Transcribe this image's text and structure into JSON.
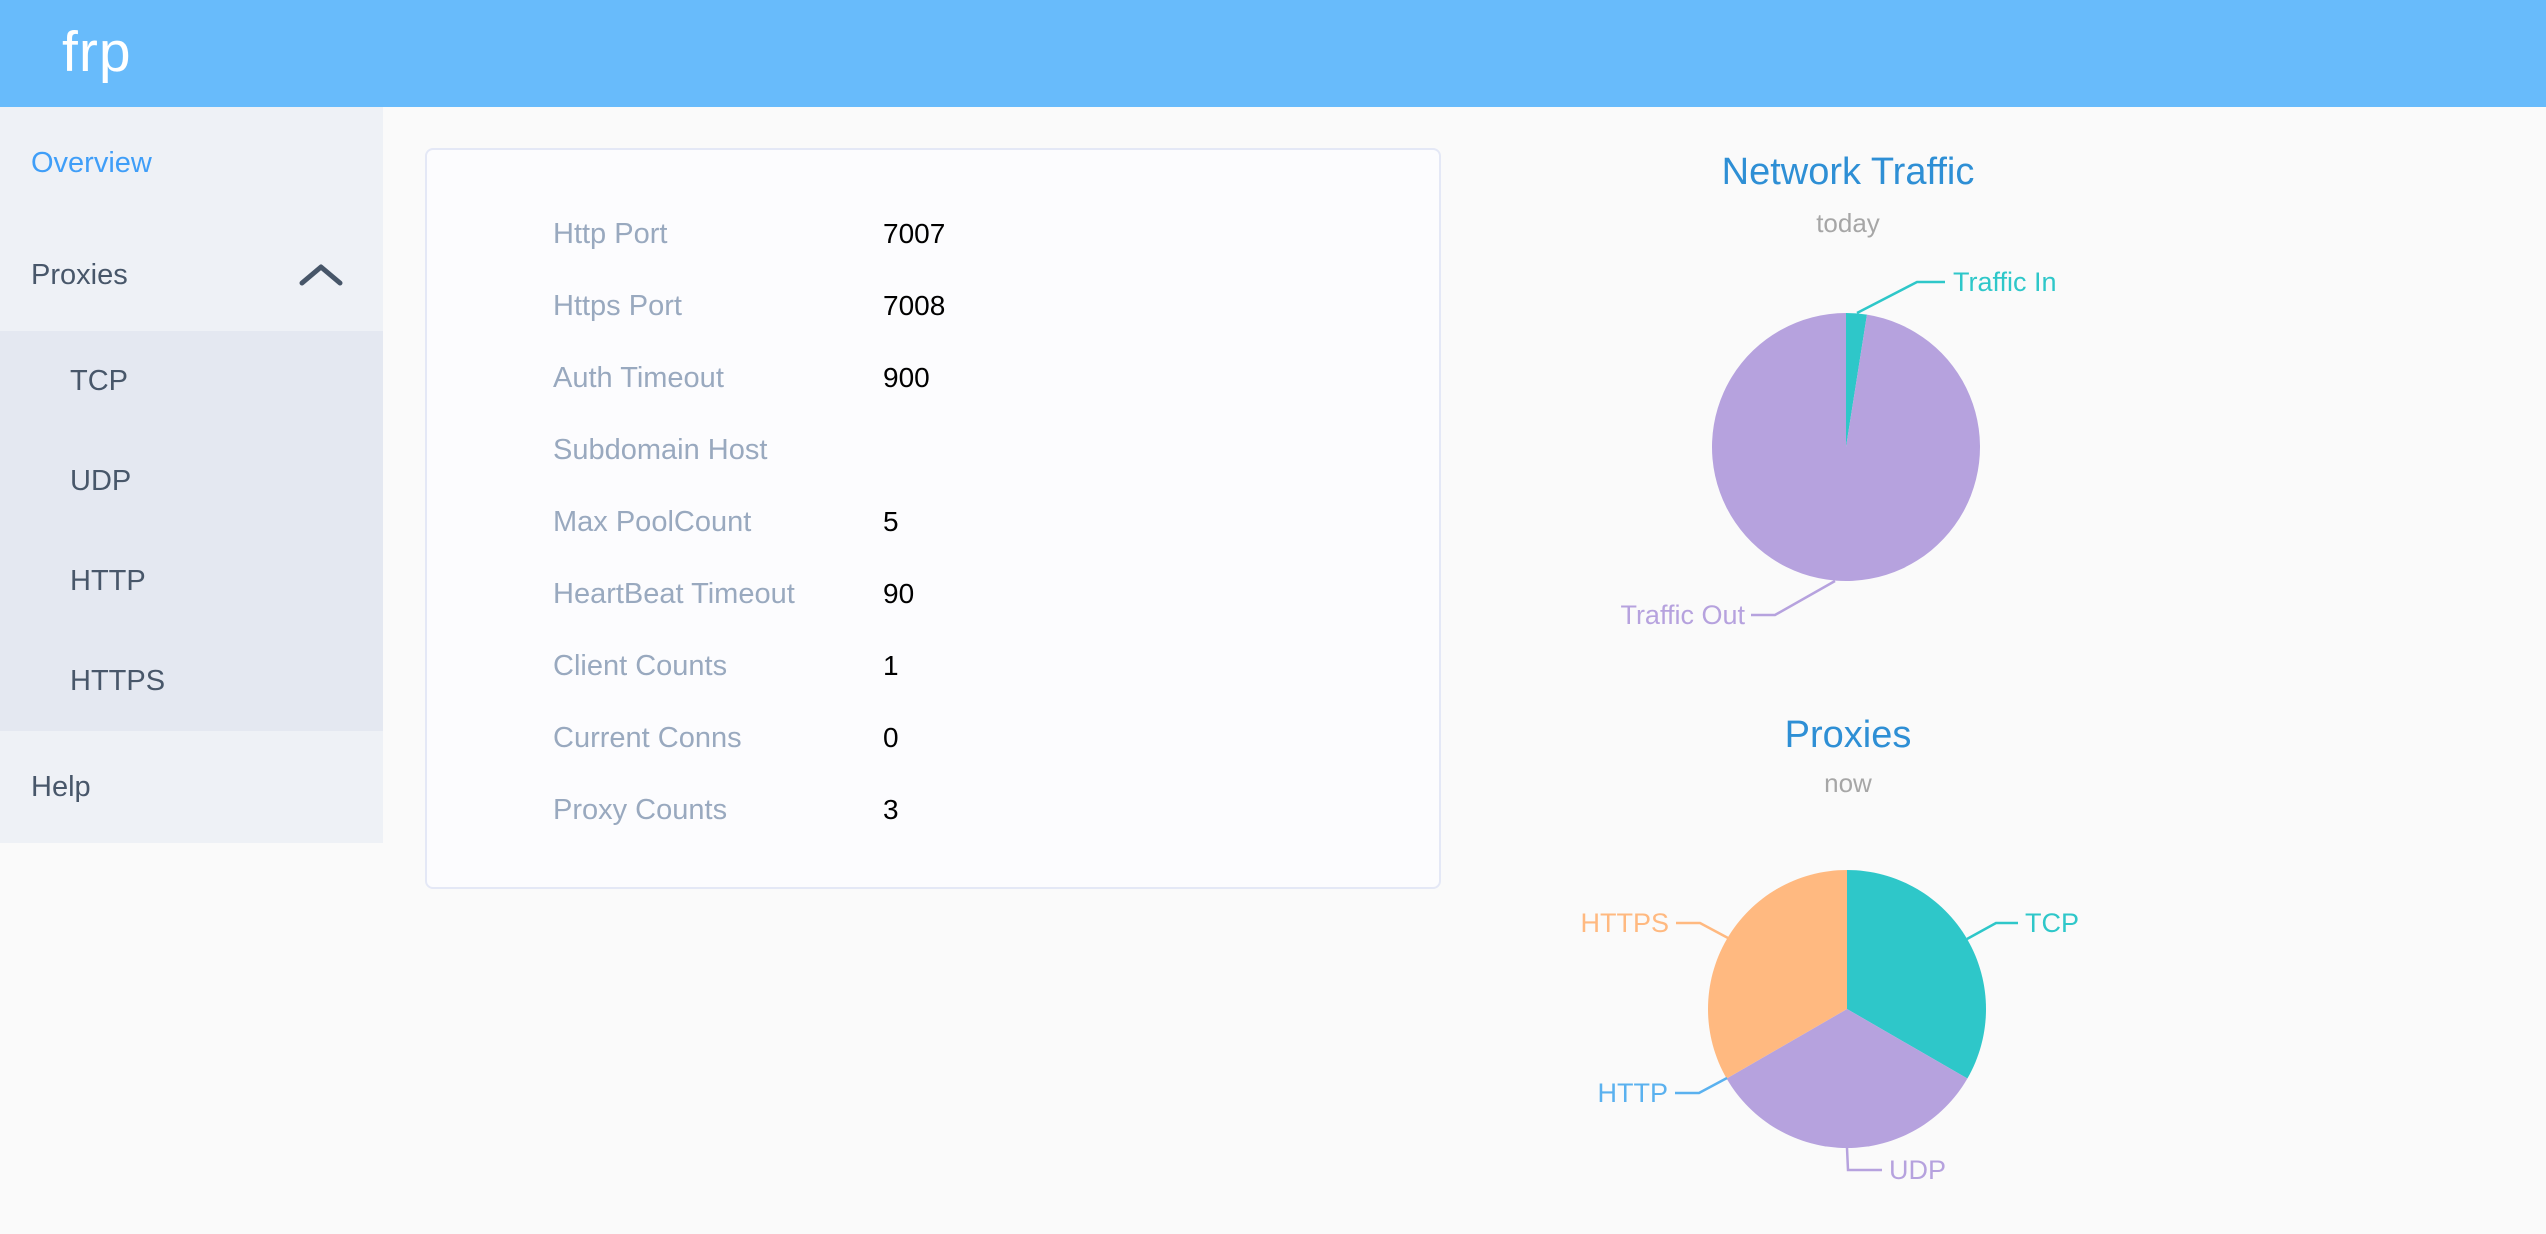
{
  "header": {
    "logo": "frp"
  },
  "colors": {
    "header_bg": "#68bbfb",
    "sidebar_bg": "#eef1f6",
    "submenu_bg": "#e4e8f1",
    "sidebar_text": "#48576a",
    "sidebar_active": "#3f9ef8",
    "chart_title_blue": "#2e8fd5",
    "chart_subtitle_gray": "#a6a6a6",
    "config_label_gray": "#99a9bf"
  },
  "sidebar": {
    "items": [
      {
        "label": "Overview",
        "active": true
      },
      {
        "label": "Proxies",
        "expanded": true
      },
      {
        "label": "TCP"
      },
      {
        "label": "UDP"
      },
      {
        "label": "HTTP"
      },
      {
        "label": "HTTPS"
      },
      {
        "label": "Help"
      }
    ]
  },
  "overview": {
    "rows": [
      {
        "label": "Http Port",
        "value": "7007"
      },
      {
        "label": "Https Port",
        "value": "7008"
      },
      {
        "label": "Auth Timeout",
        "value": "900"
      },
      {
        "label": "Subdomain Host",
        "value": ""
      },
      {
        "label": "Max PoolCount",
        "value": "5"
      },
      {
        "label": "HeartBeat Timeout",
        "value": "90"
      },
      {
        "label": "Client Counts",
        "value": "1"
      },
      {
        "label": "Current Conns",
        "value": "0"
      },
      {
        "label": "Proxy Counts",
        "value": "3"
      }
    ]
  },
  "chart_data": [
    {
      "type": "pie",
      "title": "Network Traffic",
      "subtitle": "today",
      "legend_position": "callout-labels",
      "unit": "percent (estimated from slice angles)",
      "series": [
        {
          "name": "Traffic In",
          "value": 2.5,
          "color": "#2ec7c9"
        },
        {
          "name": "Traffic Out",
          "value": 97.5,
          "color": "#b6a2de"
        }
      ]
    },
    {
      "type": "pie",
      "title": "Proxies",
      "subtitle": "now",
      "legend_position": "callout-labels",
      "unit": "proxy count",
      "series": [
        {
          "name": "TCP",
          "value": 1,
          "color": "#2ec7c9"
        },
        {
          "name": "UDP",
          "value": 1,
          "color": "#b6a2de"
        },
        {
          "name": "HTTP",
          "value": 0,
          "color": "#5ab1ef"
        },
        {
          "name": "HTTPS",
          "value": 1,
          "color": "#ffb980"
        }
      ]
    }
  ]
}
